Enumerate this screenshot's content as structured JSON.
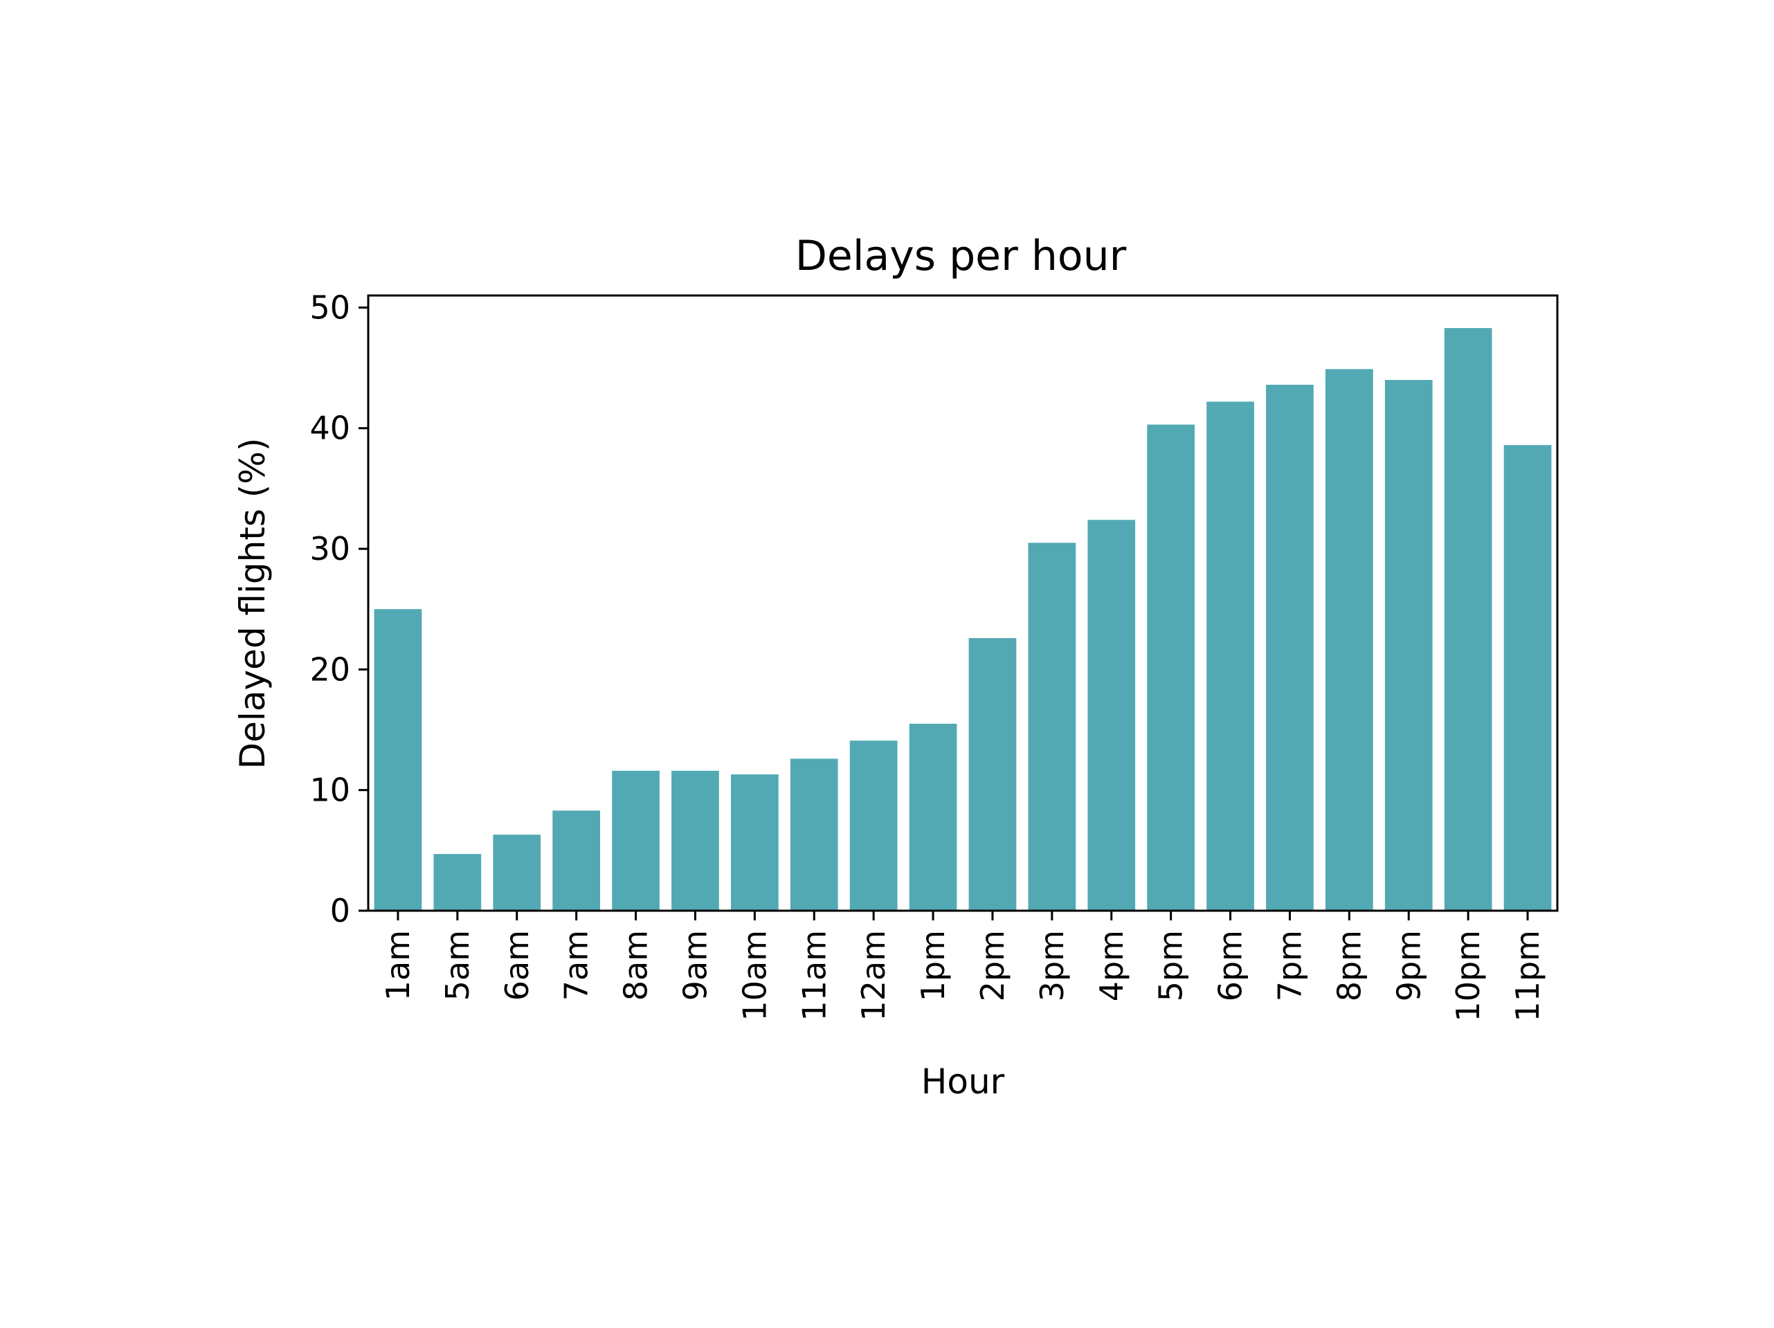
{
  "chart_data": {
    "type": "bar",
    "title": "Delays per hour",
    "xlabel": "Hour",
    "ylabel": "Delayed flights (%)",
    "categories": [
      "1am",
      "5am",
      "6am",
      "7am",
      "8am",
      "9am",
      "10am",
      "11am",
      "12am",
      "1pm",
      "2pm",
      "3pm",
      "4pm",
      "5pm",
      "6pm",
      "7pm",
      "8pm",
      "9pm",
      "10pm",
      "11pm"
    ],
    "values": [
      25.0,
      4.7,
      6.3,
      8.3,
      11.6,
      11.6,
      11.3,
      12.6,
      14.1,
      15.5,
      22.6,
      30.5,
      32.4,
      40.3,
      42.2,
      43.6,
      44.9,
      44.0,
      48.3,
      38.6
    ],
    "ylim": [
      0,
      51
    ],
    "yticks": [
      "0",
      "10",
      "20",
      "30",
      "40",
      "50"
    ],
    "bar_color": "#52a9b4",
    "grid": false,
    "legend": "none"
  }
}
